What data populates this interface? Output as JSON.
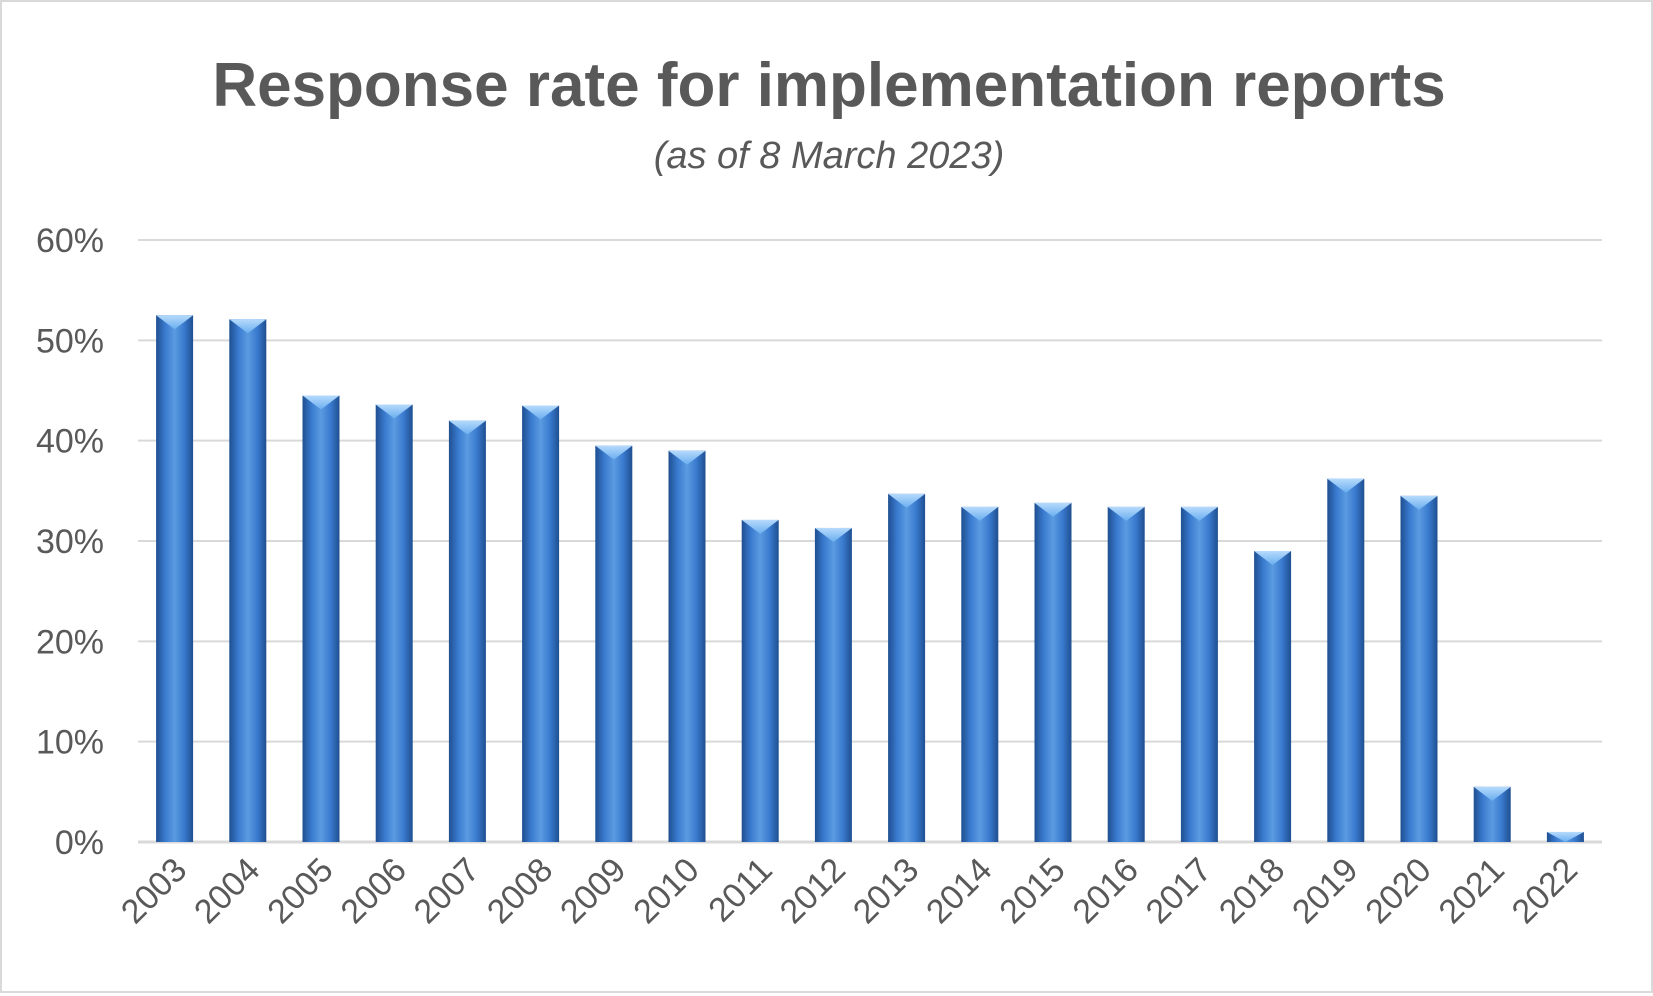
{
  "chart_data": {
    "type": "bar",
    "title": "Response rate for implementation reports",
    "subtitle": "(as of 8 March 2023)",
    "xlabel": "",
    "ylabel": "",
    "categories": [
      "2003",
      "2004",
      "2005",
      "2006",
      "2007",
      "2008",
      "2009",
      "2010",
      "2011",
      "2012",
      "2013",
      "2014",
      "2015",
      "2016",
      "2017",
      "2018",
      "2019",
      "2020",
      "2021",
      "2022"
    ],
    "values": [
      52.5,
      52.1,
      44.5,
      43.6,
      42.0,
      43.5,
      39.5,
      39.0,
      32.1,
      31.3,
      34.7,
      33.4,
      33.8,
      33.4,
      33.4,
      29.0,
      36.2,
      34.5,
      5.5,
      1.0
    ],
    "ylim": [
      0,
      60
    ],
    "yticks": [
      "0%",
      "10%",
      "20%",
      "30%",
      "40%",
      "50%",
      "60%"
    ],
    "grid": true,
    "legend": "none",
    "colors": {
      "bar_light": "#5b9be0",
      "bar_mid": "#3a7bd0",
      "bar_dark": "#1f4f90",
      "bar_cap": "#8fc4f7",
      "text": "#595959",
      "grid": "#d9d9d9"
    }
  }
}
